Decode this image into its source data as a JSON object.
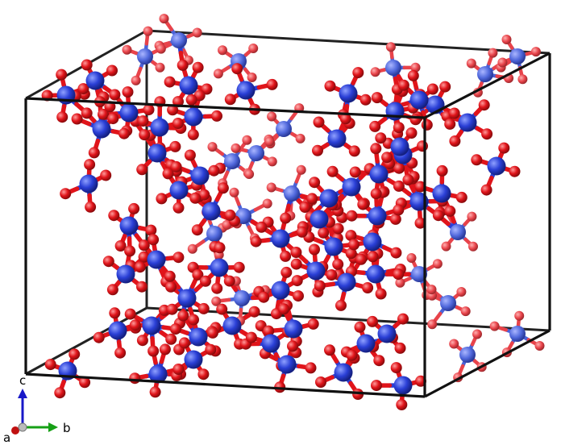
{
  "axes": {
    "a_label": "a",
    "b_label": "b",
    "c_label": "c"
  },
  "colors": {
    "background": "#ffffff",
    "cell_edge": "#111111",
    "atom_si": "#2a3fd6",
    "atom_si_far": "#4a62d8",
    "atom_o": "#e0141a",
    "atom_o_far": "#e8434a",
    "axis_a": "#c01010",
    "axis_b": "#16a016",
    "axis_c": "#1818c8"
  }
}
